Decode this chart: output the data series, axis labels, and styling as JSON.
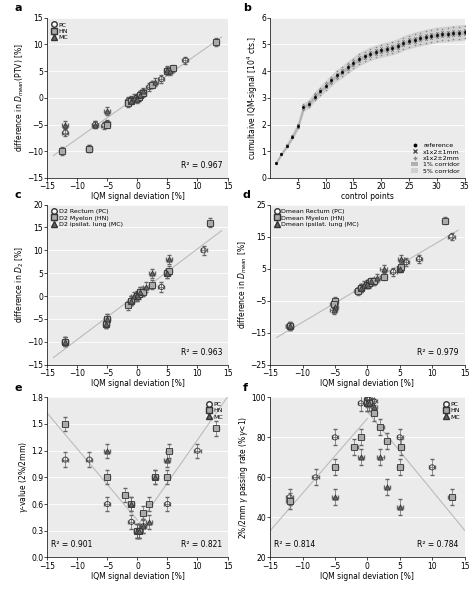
{
  "panel_a": {
    "PC_x": [
      -12,
      -8,
      -7,
      -5.5,
      -5,
      -1.5,
      -1,
      0,
      0.3,
      0.5,
      1,
      2,
      4,
      8
    ],
    "PC_y": [
      -6.5,
      -9.5,
      -5,
      -5.2,
      -4.8,
      -0.5,
      -0.3,
      0.1,
      0.2,
      0.5,
      0.8,
      2,
      3.5,
      7
    ],
    "HN_x": [
      -12.5,
      -8,
      -5,
      -1.5,
      -1,
      0,
      0.2,
      0.5,
      1,
      2.5,
      5,
      6,
      13
    ],
    "HN_y": [
      -10,
      -9.5,
      -5,
      -1,
      -0.5,
      0,
      0.1,
      0.5,
      1,
      2.5,
      5,
      5.5,
      10.5
    ],
    "MC_x": [
      -12,
      -7,
      -5,
      -1,
      -0.5,
      0,
      0.5,
      1,
      3,
      5,
      5.5
    ],
    "MC_y": [
      -5,
      -5,
      -2.5,
      -0.5,
      0,
      -0.2,
      0.5,
      1.2,
      3,
      5.2,
      5
    ],
    "r2": "0.967",
    "xlabel": "IQM signal deviation [%]",
    "ylabel": "difference in $D_{mean}$(PTV) [%]",
    "xlim": [
      -15,
      15
    ],
    "ylim": [
      -15,
      15
    ],
    "xticks": [
      -15,
      -10,
      -5,
      0,
      5,
      10,
      15
    ],
    "yticks": [
      -15,
      -10,
      -5,
      0,
      5,
      10,
      15
    ]
  },
  "panel_b": {
    "ref_x": [
      1,
      2,
      3,
      4,
      5,
      6,
      7,
      8,
      9,
      10,
      11,
      12,
      13,
      14,
      15,
      16,
      17,
      18,
      19,
      20,
      21,
      22,
      23,
      24,
      25,
      26,
      27,
      28,
      29,
      30,
      31,
      32,
      33,
      34,
      35
    ],
    "ref_y": [
      0.55,
      0.9,
      1.2,
      1.55,
      1.95,
      2.65,
      2.78,
      3.05,
      3.25,
      3.45,
      3.65,
      3.85,
      3.98,
      4.15,
      4.3,
      4.45,
      4.55,
      4.65,
      4.72,
      4.78,
      4.83,
      4.88,
      4.95,
      5.05,
      5.12,
      5.18,
      5.23,
      5.28,
      5.32,
      5.36,
      5.38,
      5.4,
      5.42,
      5.44,
      5.46
    ],
    "xlabel": "control points",
    "ylabel": "cumultaive IQM-signal [$10^4$ cts.]",
    "xlim": [
      0,
      35
    ],
    "ylim": [
      0,
      6
    ],
    "xticks": [
      5,
      10,
      15,
      20,
      25,
      30,
      35
    ],
    "yticks": [
      0,
      1,
      2,
      3,
      4,
      5,
      6
    ],
    "corridor_1pct": 0.01,
    "corridor_5pct": 0.05
  },
  "panel_c": {
    "PC_x": [
      -12,
      -1,
      0,
      0.2,
      1,
      4,
      11
    ],
    "PC_y": [
      -10,
      -1,
      0,
      0.3,
      1,
      2,
      10
    ],
    "HN_x": [
      -12,
      -5,
      -5.2,
      -1.5,
      -1,
      0,
      0.3,
      0.5,
      1,
      2.5,
      5,
      5.2,
      12
    ],
    "HN_y": [
      -10,
      -5,
      -6,
      -2,
      -1,
      0,
      0.5,
      1,
      1,
      2.5,
      5,
      5.5,
      16
    ],
    "MC_x": [
      -12,
      -5,
      -5.2,
      -1,
      -0.5,
      0,
      0.5,
      1.5,
      2.5,
      5,
      5.2
    ],
    "MC_y": [
      -10,
      -5,
      -6,
      -1,
      0,
      0.2,
      1,
      2,
      5,
      5,
      8
    ],
    "r2": "0.963",
    "xlabel": "IQM signal deviation [%]",
    "ylabel": "difference in $D_2$ [%]",
    "xlim": [
      -15,
      15
    ],
    "ylim": [
      -15,
      20
    ],
    "xticks": [
      -15,
      -10,
      -5,
      0,
      5,
      10,
      15
    ],
    "yticks": [
      -15,
      -10,
      -5,
      0,
      5,
      10,
      15,
      20
    ],
    "legend": [
      "D2 Rectum (PC)",
      "D2 Myelon (HN)",
      "D2 ipsilat. lung (MC)"
    ]
  },
  "panel_d": {
    "PC_x": [
      -12,
      -1,
      0,
      0.2,
      1,
      4,
      6,
      8,
      13
    ],
    "PC_y": [
      -13,
      -1,
      0,
      0.3,
      1,
      4,
      7,
      8,
      15
    ],
    "HN_x": [
      -12,
      -5,
      -5.2,
      -1.5,
      -1,
      0,
      0.3,
      0.5,
      1,
      2.5,
      5,
      5.2,
      12
    ],
    "HN_y": [
      -13,
      -5,
      -6,
      -2,
      -1,
      0,
      0.5,
      1,
      1,
      2.5,
      5,
      5.5,
      20
    ],
    "MC_x": [
      -12,
      -5,
      -5.2,
      -1,
      -0.5,
      0,
      0.5,
      1.5,
      2.5,
      5,
      5.2
    ],
    "MC_y": [
      -13,
      -7,
      -8,
      -1,
      0,
      0.2,
      1,
      2,
      5,
      5,
      8
    ],
    "r2": "0.979",
    "xlabel": "IQM signal deviation [%]",
    "ylabel": "difference in $D_{mean}$ [%]",
    "xlim": [
      -15,
      15
    ],
    "ylim": [
      -25,
      25
    ],
    "xticks": [
      -15,
      -10,
      -5,
      0,
      5,
      10,
      15
    ],
    "yticks": [
      -25,
      -15,
      -5,
      5,
      15,
      25
    ],
    "legend": [
      "Dmean Rectum (PC)",
      "Dmean Myelon (HN)",
      "Dmean ipsilat. lung (MC)"
    ]
  },
  "panel_e": {
    "PC_x": [
      -12,
      -8,
      -5,
      -1,
      0,
      0.2,
      1,
      5,
      10
    ],
    "PC_y": [
      1.1,
      1.1,
      0.6,
      0.4,
      0.3,
      0.3,
      0.35,
      0.6,
      1.2
    ],
    "HN_x": [
      -12,
      -5,
      -2,
      -1,
      0,
      0.3,
      1,
      2,
      3,
      5,
      5.2,
      13
    ],
    "HN_y": [
      1.5,
      0.9,
      0.7,
      0.6,
      0.3,
      0.3,
      0.5,
      0.6,
      0.9,
      0.9,
      1.2,
      1.45
    ],
    "MC_x": [
      -5,
      -1,
      0,
      0.2,
      1,
      2,
      3,
      5
    ],
    "MC_y": [
      1.2,
      0.6,
      0.3,
      0.3,
      0.35,
      0.4,
      0.9,
      1.1
    ],
    "r2_left": "0.901",
    "r2_right": "0.821",
    "xlabel": "IQM signal deviation [%]",
    "ylabel": "$\\gamma$-value (2%/2mm)",
    "xlim": [
      -15,
      15
    ],
    "ylim": [
      0.0,
      1.8
    ],
    "xticks": [
      -15,
      -10,
      -5,
      0,
      5,
      10,
      15
    ],
    "yticks": [
      0.0,
      0.3,
      0.6,
      0.9,
      1.2,
      1.5,
      1.8
    ]
  },
  "panel_f": {
    "PC_x": [
      -12,
      -8,
      -5,
      -1,
      0,
      0.2,
      1,
      5,
      10
    ],
    "PC_y": [
      50,
      60,
      80,
      97,
      99,
      99,
      98,
      80,
      65
    ],
    "HN_x": [
      -12,
      -5,
      -2,
      -1,
      0,
      0.3,
      1,
      2,
      3,
      5,
      5.2,
      13
    ],
    "HN_y": [
      48,
      65,
      75,
      80,
      97,
      97,
      92,
      85,
      78,
      65,
      75,
      50
    ],
    "MC_x": [
      -5,
      -1,
      0,
      0.2,
      1,
      2,
      3,
      5
    ],
    "MC_y": [
      50,
      70,
      97,
      97,
      95,
      70,
      55,
      45
    ],
    "r2_left": "0.814",
    "r2_right": "0.784",
    "xlabel": "IQM signal deviation [%]",
    "ylabel": "2%/2mm $\\gamma$ passing rate (%$\\gamma$<1)",
    "xlim": [
      -15,
      15
    ],
    "ylim": [
      20,
      100
    ],
    "xticks": [
      -15,
      -10,
      -5,
      0,
      5,
      10,
      15
    ],
    "yticks": [
      20,
      40,
      60,
      80,
      100
    ]
  },
  "bg_color": "#ebebeb",
  "grid_color": "white",
  "line_color": "#bbbbbb",
  "gray_dark": "#333333",
  "marker_size": 14
}
